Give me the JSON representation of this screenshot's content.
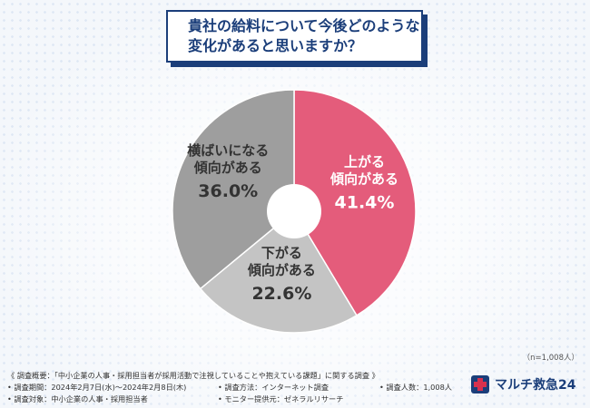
{
  "title": {
    "line1": "貴社の給料について今後どのような",
    "line2": "変化があると思いますか？"
  },
  "chart_data": {
    "type": "pie",
    "subtype": "donut",
    "start_angle_deg": 0,
    "direction": "clockwise",
    "slices": [
      {
        "label_lines": [
          "上がる",
          "傾向がある"
        ],
        "value": 41.4,
        "value_text": "41.4%",
        "color": "#e45c7b",
        "label_color": "#ffffff"
      },
      {
        "label_lines": [
          "下がる",
          "傾向がある"
        ],
        "value": 22.6,
        "value_text": "22.6%",
        "color": "#c4c4c4",
        "label_color": "#333333"
      },
      {
        "label_lines": [
          "横ばいになる",
          "傾向がある"
        ],
        "value": 36.0,
        "value_text": "36.0%",
        "color": "#9e9e9e",
        "label_color": "#333333"
      }
    ]
  },
  "sample_size": "（n=1,008人）",
  "footer": {
    "overview": "《 調査概要：「中小企業の人事・採用担当者が採用活動で注視していることや抱えている課題」に関する調査 》",
    "period": "• 調査期間：2024年2月7日(水)～2024年2月8日(木)",
    "method": "• 調査方法：インターネット調査",
    "count": "• 調査人数：1,008人",
    "target": "• 調査対象：中小企業の人事・採用担当者",
    "provider": "• モニター提供元：ゼネラルリサーチ"
  },
  "logo": {
    "text": "マルチ救急24"
  },
  "colors": {
    "brand": "#1b3e7a",
    "logo_red": "#d8314f"
  }
}
